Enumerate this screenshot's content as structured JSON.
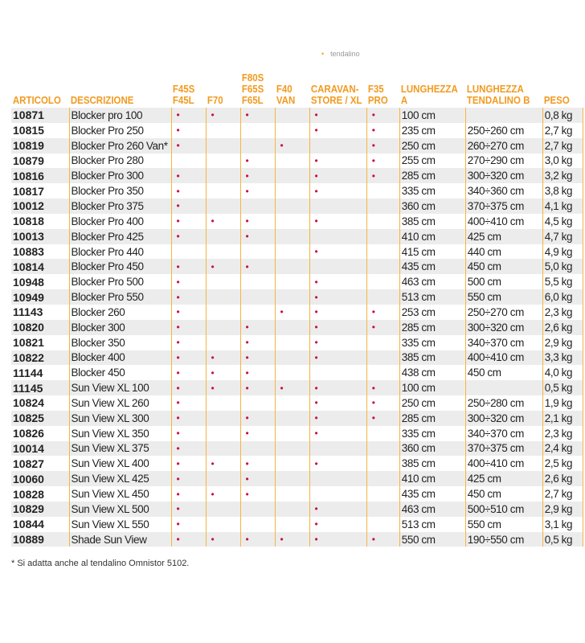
{
  "top_note": "tendalino",
  "footnote": "* Si adatta anche al tendalino Omnistor 5102.",
  "colors": {
    "header": "#f29a1f",
    "dot": "#c8103c",
    "row_alt": "#ececec"
  },
  "headers": {
    "articolo": "ARTICOLO",
    "descrizione": "DESCRIZIONE",
    "f45": [
      "F45S",
      "F45L"
    ],
    "f70": [
      "F70"
    ],
    "f80": [
      "F80S",
      "F65S",
      "F65L"
    ],
    "f40": [
      "F40",
      "VAN"
    ],
    "caravan": [
      "CARAVAN-",
      "STORE / XL"
    ],
    "f35": [
      "F35",
      "PRO"
    ],
    "lunghezza_a": [
      "LUNGHEZZA",
      "A"
    ],
    "lunghezza_b": [
      "LUNGHEZZA",
      "TENDALINO B"
    ],
    "peso": "PESO"
  },
  "compat_columns": [
    "F45S/F45L",
    "F70",
    "F80S/F65S/F65L",
    "F40 VAN",
    "CARAVAN-STORE / XL",
    "F35 PRO"
  ],
  "rows": [
    {
      "code": "10871",
      "desc": "Blocker pro 100",
      "compat": [
        1,
        1,
        1,
        0,
        1,
        1
      ],
      "a": "100 cm",
      "b": "",
      "peso": "0,8 kg"
    },
    {
      "code": "10815",
      "desc": "Blocker Pro 250",
      "compat": [
        1,
        0,
        0,
        0,
        1,
        1
      ],
      "a": "235 cm",
      "b": "250÷260 cm",
      "peso": "2,7 kg"
    },
    {
      "code": "10819",
      "desc": "Blocker Pro 260 Van*",
      "compat": [
        1,
        0,
        0,
        1,
        0,
        1
      ],
      "a": "250 cm",
      "b": "260÷270 cm",
      "peso": "2,7 kg"
    },
    {
      "code": "10879",
      "desc": "Blocker Pro 280",
      "compat": [
        0,
        0,
        1,
        0,
        1,
        1
      ],
      "a": "255 cm",
      "b": "270÷290 cm",
      "peso": "3,0 kg"
    },
    {
      "code": "10816",
      "desc": "Blocker Pro 300",
      "compat": [
        1,
        0,
        1,
        0,
        1,
        1
      ],
      "a": "285 cm",
      "b": "300÷320 cm",
      "peso": "3,2 kg"
    },
    {
      "code": "10817",
      "desc": "Blocker Pro 350",
      "compat": [
        1,
        0,
        1,
        0,
        1,
        0
      ],
      "a": "335 cm",
      "b": "340÷360 cm",
      "peso": "3,8 kg"
    },
    {
      "code": "10012",
      "desc": "Blocker Pro 375",
      "compat": [
        1,
        0,
        0,
        0,
        0,
        0
      ],
      "a": "360 cm",
      "b": "370÷375 cm",
      "peso": "4,1 kg"
    },
    {
      "code": "10818",
      "desc": "Blocker Pro 400",
      "compat": [
        1,
        1,
        1,
        0,
        1,
        0
      ],
      "a": "385 cm",
      "b": "400÷410 cm",
      "peso": "4,5 kg"
    },
    {
      "code": "10013",
      "desc": "Blocker Pro 425",
      "compat": [
        1,
        0,
        1,
        0,
        0,
        0
      ],
      "a": "410 cm",
      "b": "425 cm",
      "peso": "4,7 kg"
    },
    {
      "code": "10883",
      "desc": "Blocker Pro 440",
      "compat": [
        0,
        0,
        0,
        0,
        1,
        0
      ],
      "a": "415 cm",
      "b": "440 cm",
      "peso": "4,9 kg"
    },
    {
      "code": "10814",
      "desc": "Blocker Pro 450",
      "compat": [
        1,
        1,
        1,
        0,
        0,
        0
      ],
      "a": "435 cm",
      "b": "450 cm",
      "peso": "5,0 kg"
    },
    {
      "code": "10948",
      "desc": "Blocker Pro 500",
      "compat": [
        1,
        0,
        0,
        0,
        1,
        0
      ],
      "a": "463 cm",
      "b": "500 cm",
      "peso": "5,5 kg"
    },
    {
      "code": "10949",
      "desc": "Blocker Pro 550",
      "compat": [
        1,
        0,
        0,
        0,
        1,
        0
      ],
      "a": "513 cm",
      "b": "550 cm",
      "peso": "6,0 kg"
    },
    {
      "code": "11143",
      "desc": "Blocker 260",
      "compat": [
        1,
        0,
        0,
        1,
        1,
        1
      ],
      "a": "253 cm",
      "b": "250÷270 cm",
      "peso": "2,3 kg"
    },
    {
      "code": "10820",
      "desc": "Blocker 300",
      "compat": [
        1,
        0,
        1,
        0,
        1,
        1
      ],
      "a": "285 cm",
      "b": "300÷320 cm",
      "peso": "2,6 kg"
    },
    {
      "code": "10821",
      "desc": "Blocker 350",
      "compat": [
        1,
        0,
        1,
        0,
        1,
        0
      ],
      "a": "335 cm",
      "b": "340÷370 cm",
      "peso": "2,9 kg"
    },
    {
      "code": "10822",
      "desc": "Blocker 400",
      "compat": [
        1,
        1,
        1,
        0,
        1,
        0
      ],
      "a": "385 cm",
      "b": "400÷410 cm",
      "peso": "3,3 kg"
    },
    {
      "code": "11144",
      "desc": "Blocker 450",
      "compat": [
        1,
        1,
        1,
        0,
        0,
        0
      ],
      "a": "438 cm",
      "b": "450 cm",
      "peso": "4,0 kg"
    },
    {
      "code": "11145",
      "desc": "Sun View XL 100",
      "compat": [
        1,
        1,
        1,
        1,
        1,
        1
      ],
      "a": "100 cm",
      "b": "",
      "peso": "0,5 kg"
    },
    {
      "code": "10824",
      "desc": "Sun View XL 260",
      "compat": [
        1,
        0,
        0,
        0,
        1,
        1
      ],
      "a": "250 cm",
      "b": "250÷280 cm",
      "peso": "1,9 kg"
    },
    {
      "code": "10825",
      "desc": "Sun View XL 300",
      "compat": [
        1,
        0,
        1,
        0,
        1,
        1
      ],
      "a": "285 cm",
      "b": "300÷320 cm",
      "peso": "2,1 kg"
    },
    {
      "code": "10826",
      "desc": "Sun View XL 350",
      "compat": [
        1,
        0,
        1,
        0,
        1,
        0
      ],
      "a": "335 cm",
      "b": "340÷370 cm",
      "peso": "2,3 kg"
    },
    {
      "code": "10014",
      "desc": "Sun View XL 375",
      "compat": [
        1,
        0,
        0,
        0,
        0,
        0
      ],
      "a": "360 cm",
      "b": "370÷375 cm",
      "peso": "2,4 kg"
    },
    {
      "code": "10827",
      "desc": "Sun View XL 400",
      "compat": [
        1,
        1,
        1,
        0,
        1,
        0
      ],
      "a": "385 cm",
      "b": "400÷410 cm",
      "peso": "2,5 kg"
    },
    {
      "code": "10060",
      "desc": "Sun View XL 425",
      "compat": [
        1,
        0,
        1,
        0,
        0,
        0
      ],
      "a": "410 cm",
      "b": "425 cm",
      "peso": "2,6 kg"
    },
    {
      "code": "10828",
      "desc": "Sun View XL 450",
      "compat": [
        1,
        1,
        1,
        0,
        0,
        0
      ],
      "a": "435 cm",
      "b": "450 cm",
      "peso": "2,7 kg"
    },
    {
      "code": "10829",
      "desc": "Sun View XL 500",
      "compat": [
        1,
        0,
        0,
        0,
        1,
        0
      ],
      "a": "463 cm",
      "b": "500÷510 cm",
      "peso": "2,9 kg"
    },
    {
      "code": "10844",
      "desc": "Sun View XL 550",
      "compat": [
        1,
        0,
        0,
        0,
        1,
        0
      ],
      "a": "513 cm",
      "b": "550 cm",
      "peso": "3,1 kg"
    },
    {
      "code": "10889",
      "desc": "Shade Sun View",
      "compat": [
        1,
        1,
        1,
        1,
        1,
        1
      ],
      "a": "550 cm",
      "b": "190÷550 cm",
      "peso": "0,5 kg"
    }
  ]
}
